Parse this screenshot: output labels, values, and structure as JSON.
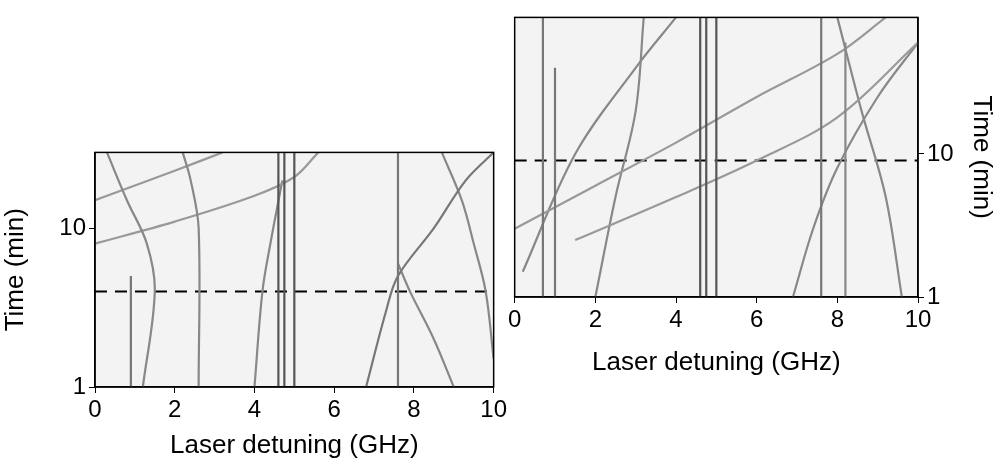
{
  "chart_data": [
    {
      "type": "line",
      "x_label": "Laser detuning (GHz)",
      "y_label": "Time (min)",
      "log": "y",
      "grid": false,
      "xlim": [
        0,
        10
      ],
      "xticks": [
        0,
        2,
        4,
        6,
        8,
        10
      ],
      "ylim": [
        1,
        30
      ],
      "yticks": [
        1,
        10
      ],
      "series": [
        {
          "color": "#555555",
          "x": [
            4.6,
            4.6
          ],
          "values": [
            1,
            30
          ]
        },
        {
          "color": "#555555",
          "x": [
            4.75,
            4.75
          ],
          "values": [
            1,
            30
          ]
        },
        {
          "color": "#555555",
          "x": [
            5.0,
            5.0
          ],
          "values": [
            1,
            30
          ]
        },
        {
          "color": "#777777",
          "x": [
            0.9,
            0.9
          ],
          "values": [
            1,
            5
          ]
        },
        {
          "color": "#777777",
          "x": [
            7.6,
            7.6
          ],
          "values": [
            1,
            30
          ]
        },
        {
          "color": "#888888",
          "x": [
            1.2,
            1.5,
            1.3,
            0.8,
            0.3
          ],
          "values": [
            1,
            4,
            8,
            15,
            30
          ]
        },
        {
          "color": "#888888",
          "x": [
            2.6,
            2.6,
            2.4,
            2.2
          ],
          "values": [
            1,
            10,
            20,
            30
          ]
        },
        {
          "color": "#999999",
          "x": [
            0,
            2,
            4,
            5,
            5.6
          ],
          "values": [
            8,
            11,
            16,
            21,
            30
          ]
        },
        {
          "color": "#999999",
          "x": [
            0,
            2,
            3.2
          ],
          "values": [
            15,
            23,
            30
          ]
        },
        {
          "color": "#888888",
          "x": [
            4.0,
            4.2,
            4.4,
            4.7
          ],
          "values": [
            1,
            4,
            8,
            20
          ]
        },
        {
          "color": "#777777",
          "x": [
            6.8,
            7.3,
            7.6,
            8.5,
            9.3,
            10
          ],
          "values": [
            1,
            3,
            5,
            10,
            20,
            30
          ]
        },
        {
          "color": "#888888",
          "x": [
            9.0,
            8.5,
            7.9,
            7.6
          ],
          "values": [
            1,
            2,
            4,
            6
          ]
        },
        {
          "color": "#888888",
          "x": [
            10,
            9.8,
            9.5,
            9.2,
            8.7
          ],
          "values": [
            1.5,
            4,
            8,
            15,
            30
          ]
        },
        {
          "color": "#000000",
          "line_style": "dashed",
          "x": [
            0,
            10
          ],
          "values": [
            4,
            4
          ]
        }
      ]
    },
    {
      "type": "line",
      "x_label": "Laser detuning (GHz)",
      "y_label": "Time (min)",
      "log": "y",
      "grid": false,
      "xlim": [
        0,
        10
      ],
      "xticks": [
        0,
        2,
        4,
        6,
        8,
        10
      ],
      "ylim": [
        1,
        90
      ],
      "yticks": [
        1,
        10
      ],
      "series": [
        {
          "color": "#555555",
          "x": [
            4.6,
            4.6
          ],
          "values": [
            1,
            90
          ]
        },
        {
          "color": "#555555",
          "x": [
            4.75,
            4.75
          ],
          "values": [
            1,
            90
          ]
        },
        {
          "color": "#555555",
          "x": [
            5.0,
            5.0
          ],
          "values": [
            1,
            90
          ]
        },
        {
          "color": "#777777",
          "x": [
            0.7,
            0.7
          ],
          "values": [
            1,
            90
          ]
        },
        {
          "color": "#777777",
          "x": [
            1.0,
            1.0
          ],
          "values": [
            1,
            40
          ]
        },
        {
          "color": "#777777",
          "x": [
            7.6,
            7.6
          ],
          "values": [
            1,
            90
          ]
        },
        {
          "color": "#888888",
          "x": [
            8.2,
            8.2
          ],
          "values": [
            1,
            60
          ]
        },
        {
          "color": "#999999",
          "x": [
            0,
            2,
            4,
            6,
            8,
            9.2
          ],
          "values": [
            3,
            6,
            12,
            25,
            50,
            90
          ]
        },
        {
          "color": "#999999",
          "x": [
            1.5,
            4,
            6,
            8,
            10
          ],
          "values": [
            2.5,
            5,
            9,
            18,
            60
          ]
        },
        {
          "color": "#888888",
          "x": [
            2.0,
            2.5,
            3.0,
            3.2
          ],
          "values": [
            1,
            5,
            20,
            90
          ]
        },
        {
          "color": "#888888",
          "x": [
            0.2,
            1.5,
            3.0,
            4.0
          ],
          "values": [
            1.5,
            10,
            40,
            90
          ]
        },
        {
          "color": "#888888",
          "x": [
            6.9,
            7.4,
            8.0,
            9.0,
            10
          ],
          "values": [
            1,
            3,
            8,
            25,
            60
          ]
        },
        {
          "color": "#888888",
          "x": [
            9.6,
            9.2,
            8.6,
            8.0
          ],
          "values": [
            1,
            5,
            20,
            90
          ]
        },
        {
          "color": "#000000",
          "line_style": "dashed",
          "x": [
            0,
            10
          ],
          "values": [
            9,
            9
          ]
        }
      ]
    }
  ]
}
